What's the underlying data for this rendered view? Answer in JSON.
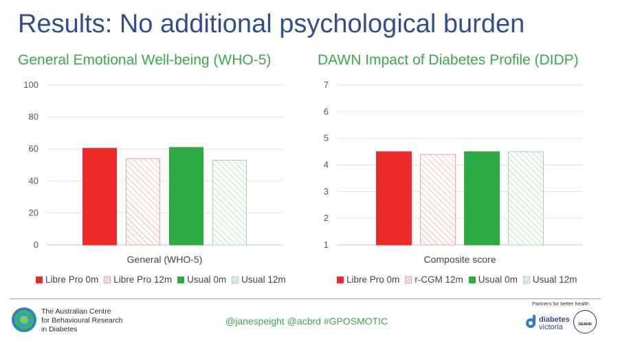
{
  "slide": {
    "title": "Results: No additional psychological burden"
  },
  "colors": {
    "red": "#ee2a2a",
    "red_hatch": "#f2a0a0",
    "green": "#2eaa45",
    "green_hatch": "#9fd8aa",
    "title": "#2f4f8f",
    "subtitle": "#3aaa48"
  },
  "chart_data": [
    {
      "type": "bar",
      "title": "General Emotional Well-being (WHO-5)",
      "categories": [
        "General (WHO-5)"
      ],
      "series": [
        {
          "name": "Libre Pro 0m",
          "values": [
            60.5
          ],
          "fill": "solid",
          "color": "#ee2a2a"
        },
        {
          "name": "Libre Pro 12m",
          "values": [
            54
          ],
          "fill": "hatched",
          "color": "#f2a0a0"
        },
        {
          "name": "Usual 0m",
          "values": [
            61
          ],
          "fill": "solid",
          "color": "#2eaa45"
        },
        {
          "name": "Usual 12m",
          "values": [
            53
          ],
          "fill": "hatched",
          "color": "#9fd8aa"
        }
      ],
      "ylim": [
        0,
        100
      ],
      "yticks": [
        0,
        20,
        40,
        60,
        80,
        100
      ],
      "grid": true,
      "legend": "bottom"
    },
    {
      "type": "bar",
      "title": "DAWN Impact of Diabetes Profile (DIDP)",
      "categories": [
        "Composite score"
      ],
      "series": [
        {
          "name": "Libre Pro 0m",
          "values": [
            4.5
          ],
          "fill": "solid",
          "color": "#ee2a2a"
        },
        {
          "name": "r-CGM 12m",
          "values": [
            4.4
          ],
          "fill": "hatched",
          "color": "#f2a0a0"
        },
        {
          "name": "Usual 0m",
          "values": [
            4.5
          ],
          "fill": "solid",
          "color": "#2eaa45"
        },
        {
          "name": "Usual 12m",
          "values": [
            4.5
          ],
          "fill": "hatched",
          "color": "#9fd8aa"
        }
      ],
      "ylim": [
        1,
        7
      ],
      "yticks": [
        1,
        2,
        3,
        4,
        5,
        6,
        7
      ],
      "grid": true,
      "legend": "bottom"
    }
  ],
  "footer": {
    "org_lines": [
      "The Australian Centre",
      "for Behavioural Research",
      "in Diabetes"
    ],
    "handles": "@janespeight  @acbrd  #GPOSMOTIC",
    "partners_label": "Partners for better health",
    "partner1_name": "diabetes",
    "partner1_sub": "victoria",
    "partner2_name": "DEAKIN"
  }
}
